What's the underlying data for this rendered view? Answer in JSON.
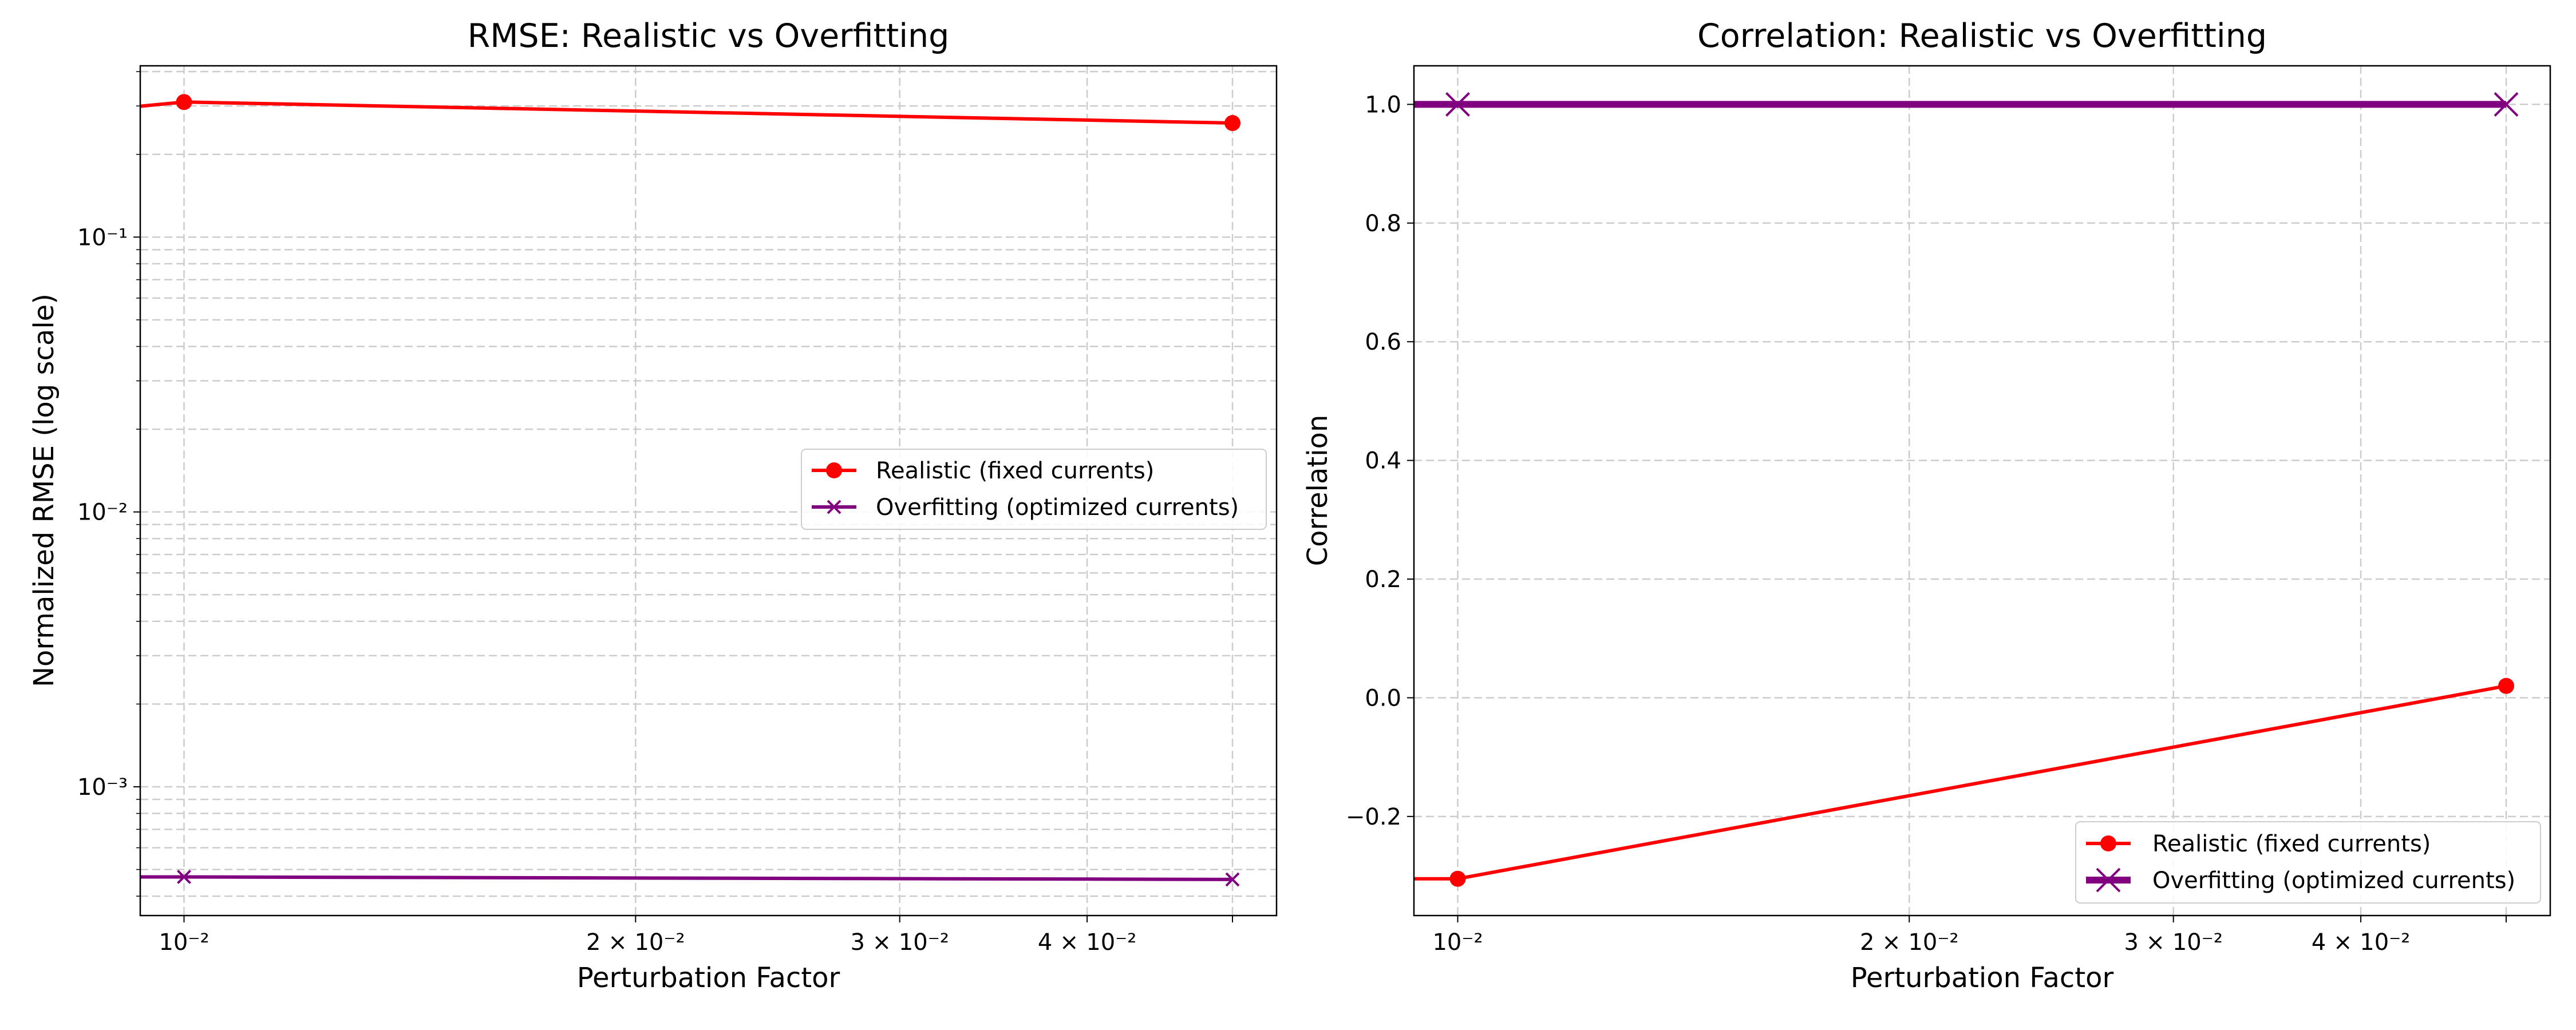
{
  "chart_data": [
    {
      "type": "line",
      "title": "RMSE: Realistic vs Overfitting",
      "xlabel": "Perturbation Factor",
      "ylabel": "Normalized RMSE (log scale)",
      "xscale": "log",
      "yscale": "log",
      "xlim": [
        0.00935,
        0.0535
      ],
      "ylim": [
        0.00034,
        0.42
      ],
      "x_ticks": [
        {
          "value": 0.01,
          "label": "10⁻²"
        },
        {
          "value": 0.02,
          "label": "2 × 10⁻²"
        },
        {
          "value": 0.03,
          "label": "3 × 10⁻²"
        },
        {
          "value": 0.04,
          "label": "4 × 10⁻²"
        }
      ],
      "y_ticks": [
        {
          "value": 0.001,
          "label": "10⁻³"
        },
        {
          "value": 0.01,
          "label": "10⁻²"
        },
        {
          "value": 0.1,
          "label": "10⁻¹"
        }
      ],
      "grid": true,
      "legend": "center-right",
      "series": [
        {
          "name": "Realistic (fixed currents)",
          "color": "#ff0000",
          "marker": "circle",
          "x": [
            0.0088,
            0.01,
            0.05
          ],
          "y": [
            0.29,
            0.31,
            0.26
          ]
        },
        {
          "name": "Overfitting (optimized currents)",
          "color": "#800080",
          "marker": "x",
          "x": [
            0.0088,
            0.01,
            0.05
          ],
          "y": [
            0.00047,
            0.00047,
            0.00046
          ]
        }
      ]
    },
    {
      "type": "line",
      "title": "Correlation: Realistic vs Overfitting",
      "xlabel": "Perturbation Factor",
      "ylabel": "Correlation",
      "xscale": "log",
      "yscale": "linear",
      "xlim": [
        0.00935,
        0.0535
      ],
      "ylim": [
        -0.367,
        1.065
      ],
      "x_ticks": [
        {
          "value": 0.01,
          "label": "10⁻²"
        },
        {
          "value": 0.02,
          "label": "2 × 10⁻²"
        },
        {
          "value": 0.03,
          "label": "3 × 10⁻²"
        },
        {
          "value": 0.04,
          "label": "4 × 10⁻²"
        }
      ],
      "y_ticks": [
        {
          "value": -0.2,
          "label": "−0.2"
        },
        {
          "value": 0.0,
          "label": "0.0"
        },
        {
          "value": 0.2,
          "label": "0.2"
        },
        {
          "value": 0.4,
          "label": "0.4"
        },
        {
          "value": 0.6,
          "label": "0.6"
        },
        {
          "value": 0.8,
          "label": "0.8"
        },
        {
          "value": 1.0,
          "label": "1.0"
        }
      ],
      "grid": true,
      "legend": "lower-right",
      "series": [
        {
          "name": "Realistic (fixed currents)",
          "color": "#ff0000",
          "marker": "circle",
          "x": [
            0.0088,
            0.01,
            0.05
          ],
          "y": [
            -0.305,
            -0.305,
            0.02
          ]
        },
        {
          "name": "Overfitting (optimized currents)",
          "color": "#800080",
          "marker": "x",
          "x": [
            0.0088,
            0.01,
            0.05
          ],
          "y": [
            1.0,
            1.0,
            1.0
          ]
        }
      ]
    }
  ]
}
